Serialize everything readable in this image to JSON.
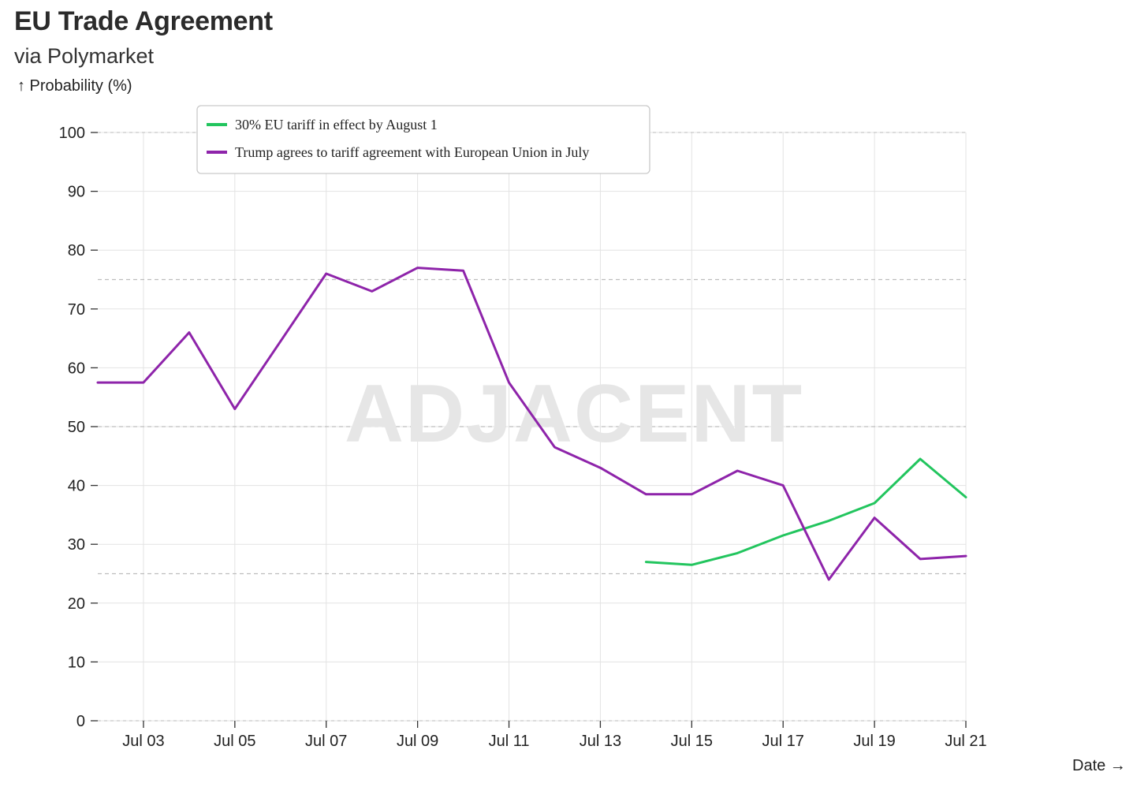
{
  "chart_data": {
    "type": "line",
    "title": "EU Trade Agreement",
    "subtitle": "via Polymarket",
    "ylabel": "↑ Probability (%)",
    "xlabel": "Date →",
    "watermark": "ADJACENT",
    "ylim": [
      0,
      100
    ],
    "xlim": [
      "2025-07-02",
      "2025-07-21"
    ],
    "yticks": [
      0,
      10,
      20,
      30,
      40,
      50,
      60,
      70,
      80,
      90,
      100
    ],
    "xticks": [
      {
        "date": "2025-07-03",
        "label": "Jul 03"
      },
      {
        "date": "2025-07-05",
        "label": "Jul 05"
      },
      {
        "date": "2025-07-07",
        "label": "Jul 07"
      },
      {
        "date": "2025-07-09",
        "label": "Jul 09"
      },
      {
        "date": "2025-07-11",
        "label": "Jul 11"
      },
      {
        "date": "2025-07-13",
        "label": "Jul 13"
      },
      {
        "date": "2025-07-15",
        "label": "Jul 15"
      },
      {
        "date": "2025-07-17",
        "label": "Jul 17"
      },
      {
        "date": "2025-07-19",
        "label": "Jul 19"
      },
      {
        "date": "2025-07-21",
        "label": "Jul 21"
      }
    ],
    "reference_lines": [
      25,
      50,
      75
    ],
    "grid": true,
    "legend_position": "top",
    "series": [
      {
        "name": "30% EU tariff in effect by August 1",
        "color": "#22c55e",
        "x": [
          "2025-07-14",
          "2025-07-15",
          "2025-07-16",
          "2025-07-17",
          "2025-07-18",
          "2025-07-19",
          "2025-07-20",
          "2025-07-21"
        ],
        "y": [
          27,
          26.5,
          28.5,
          31.5,
          34,
          37,
          44.5,
          38
        ]
      },
      {
        "name": "Trump agrees to tariff agreement with European Union in July",
        "color": "#8e24aa",
        "x": [
          "2025-07-02",
          "2025-07-03",
          "2025-07-04",
          "2025-07-05",
          "2025-07-06",
          "2025-07-07",
          "2025-07-08",
          "2025-07-09",
          "2025-07-10",
          "2025-07-11",
          "2025-07-12",
          "2025-07-13",
          "2025-07-14",
          "2025-07-15",
          "2025-07-16",
          "2025-07-17",
          "2025-07-18",
          "2025-07-19",
          "2025-07-20",
          "2025-07-21"
        ],
        "y": [
          57.5,
          57.5,
          66,
          53,
          64.5,
          76,
          73,
          77,
          76.5,
          57.5,
          46.5,
          43,
          38.5,
          38.5,
          42.5,
          40,
          24,
          34.5,
          27.5,
          28
        ]
      }
    ]
  }
}
